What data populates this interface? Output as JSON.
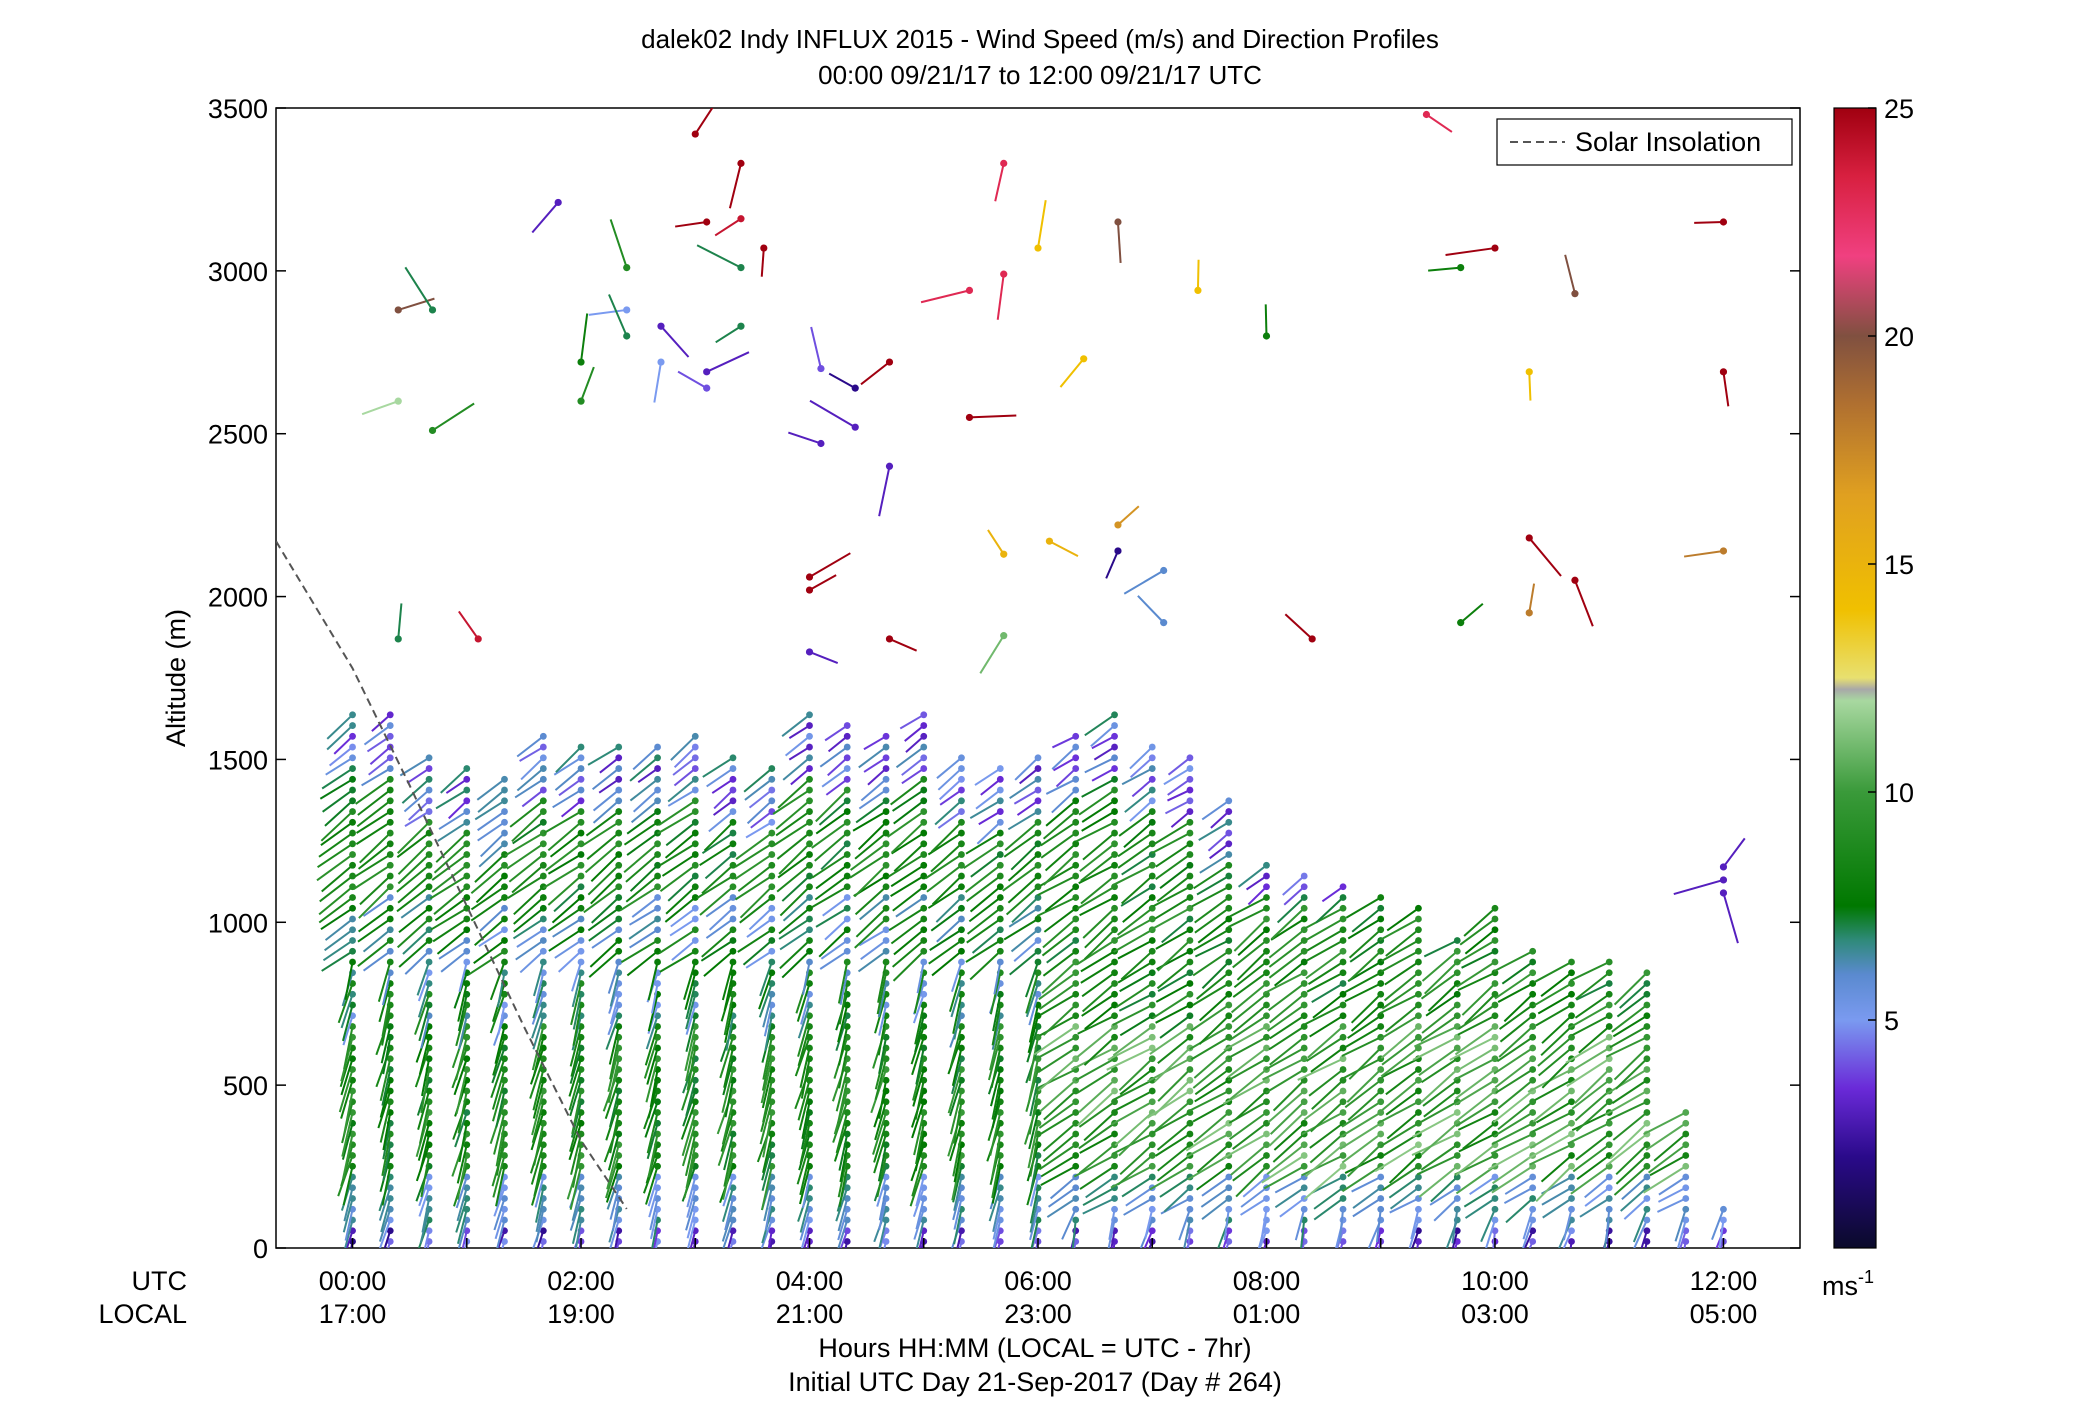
{
  "chart_data": {
    "type": "scatter",
    "title": "dalek02 Indy INFLUX 2015 - Wind Speed (m/s) and Direction Profiles",
    "subtitle": "00:00 09/21/17 to 12:00 09/21/17  UTC",
    "ylabel": "Altitude (m)",
    "ylim": [
      0,
      3500
    ],
    "yticks": [
      "0",
      "500",
      "1000",
      "1500",
      "2000",
      "2500",
      "3000",
      "3500"
    ],
    "x_row1_label": "UTC",
    "x_row2_label": "LOCAL",
    "xticks_utc": [
      "00:00",
      "02:00",
      "04:00",
      "06:00",
      "08:00",
      "10:00",
      "12:00"
    ],
    "xticks_local": [
      "17:00",
      "19:00",
      "21:00",
      "23:00",
      "01:00",
      "03:00",
      "05:00"
    ],
    "xlabel": "Hours HH:MM  (LOCAL = UTC - 7hr)",
    "xlabel2": "Initial UTC Day 21-Sep-2017 (Day # 264)",
    "xlim_hours": [
      -0.67,
      12.67
    ],
    "legend": {
      "entry": "Solar Insolation",
      "placement": "top-right",
      "style": "dashed gray line"
    },
    "colorbar": {
      "range": [
        0,
        25
      ],
      "ticks": [
        "5",
        "10",
        "15",
        "20",
        "25"
      ],
      "unit": "ms",
      "unit_exp": "-1",
      "colormap": "dark blue → purple → light blue (≈5) → teal/dark green (≈7) → light green (≈12) → gray band (≈12.5) → yellow (≈15) → orange (≈17) → brown (≈20) → pink (≈22) → dark red (25)"
    },
    "profile_times_hours": [
      0,
      0.33,
      0.67,
      1,
      1.33,
      1.67,
      2,
      2.33,
      2.67,
      3,
      3.33,
      3.67,
      4,
      4.33,
      4.67,
      5,
      5.33,
      5.67,
      6,
      6.33,
      6.67,
      7,
      7.33,
      7.67,
      8,
      8.33,
      8.67,
      9,
      9.33,
      9.67,
      10,
      10.33,
      10.67,
      11,
      11.33,
      11.67,
      12
    ],
    "profile_top_m": [
      1650,
      1650,
      1520,
      1480,
      1440,
      1600,
      1570,
      1550,
      1560,
      1600,
      1520,
      1480,
      1650,
      1620,
      1600,
      1650,
      1530,
      1500,
      1520,
      1580,
      1650,
      1560,
      1520,
      1400,
      1180,
      1150,
      1130,
      1090,
      1050,
      960,
      1050,
      940,
      900,
      880,
      860,
      440,
      150
    ],
    "solar_insolation_hours": [
      -0.67,
      0,
      0.5,
      1,
      1.5,
      2,
      2.4
    ],
    "solar_insolation_alt_m": [
      2170,
      1780,
      1420,
      1050,
      680,
      330,
      120
    ],
    "sparse_barbs": [
      {
        "t": 0.4,
        "alt": 2880,
        "speed": 20
      },
      {
        "t": 0.4,
        "alt": 2600,
        "speed": 12
      },
      {
        "t": 0.7,
        "alt": 2880,
        "speed": 7
      },
      {
        "t": 0.7,
        "alt": 2510,
        "speed": 9
      },
      {
        "t": 0.4,
        "alt": 1870,
        "speed": 7
      },
      {
        "t": 1.1,
        "alt": 1870,
        "speed": 24
      },
      {
        "t": 1.8,
        "alt": 3210,
        "speed": 3
      },
      {
        "t": 2.4,
        "alt": 3010,
        "speed": 9
      },
      {
        "t": 3.0,
        "alt": 3420,
        "speed": 25
      },
      {
        "t": 3.4,
        "alt": 3330,
        "speed": 25
      },
      {
        "t": 3.1,
        "alt": 3150,
        "speed": 25
      },
      {
        "t": 3.4,
        "alt": 3160,
        "speed": 24
      },
      {
        "t": 3.6,
        "alt": 3070,
        "speed": 25
      },
      {
        "t": 3.4,
        "alt": 3010,
        "speed": 7
      },
      {
        "t": 3.4,
        "alt": 2830,
        "speed": 7
      },
      {
        "t": 2.4,
        "alt": 2880,
        "speed": 5
      },
      {
        "t": 2.0,
        "alt": 2720,
        "speed": 8
      },
      {
        "t": 2.4,
        "alt": 2800,
        "speed": 7
      },
      {
        "t": 2.7,
        "alt": 2830,
        "speed": 3
      },
      {
        "t": 3.1,
        "alt": 2690,
        "speed": 3
      },
      {
        "t": 3.1,
        "alt": 2640,
        "speed": 4
      },
      {
        "t": 2.0,
        "alt": 2600,
        "speed": 9
      },
      {
        "t": 2.7,
        "alt": 2720,
        "speed": 5
      },
      {
        "t": 4.1,
        "alt": 2700,
        "speed": 4
      },
      {
        "t": 4.4,
        "alt": 2640,
        "speed": 2
      },
      {
        "t": 4.7,
        "alt": 2720,
        "speed": 25
      },
      {
        "t": 4.1,
        "alt": 2470,
        "speed": 3
      },
      {
        "t": 4.4,
        "alt": 2520,
        "speed": 3
      },
      {
        "t": 4.7,
        "alt": 2400,
        "speed": 3
      },
      {
        "t": 5.7,
        "alt": 3330,
        "speed": 23
      },
      {
        "t": 5.4,
        "alt": 2940,
        "speed": 23
      },
      {
        "t": 5.7,
        "alt": 2990,
        "speed": 23
      },
      {
        "t": 6.0,
        "alt": 3070,
        "speed": 14
      },
      {
        "t": 6.7,
        "alt": 3150,
        "speed": 20
      },
      {
        "t": 7.4,
        "alt": 2940,
        "speed": 14
      },
      {
        "t": 6.4,
        "alt": 2730,
        "speed": 14
      },
      {
        "t": 5.4,
        "alt": 2550,
        "speed": 25
      },
      {
        "t": 8.0,
        "alt": 2800,
        "speed": 8
      },
      {
        "t": 9.7,
        "alt": 3010,
        "speed": 8
      },
      {
        "t": 10.0,
        "alt": 3070,
        "speed": 25
      },
      {
        "t": 10.3,
        "alt": 2690,
        "speed": 14
      },
      {
        "t": 10.7,
        "alt": 2930,
        "speed": 20
      },
      {
        "t": 9.4,
        "alt": 3480,
        "speed": 23
      },
      {
        "t": 12.0,
        "alt": 3150,
        "speed": 25
      },
      {
        "t": 12.0,
        "alt": 2690,
        "speed": 25
      },
      {
        "t": 6.7,
        "alt": 2220,
        "speed": 17
      },
      {
        "t": 5.7,
        "alt": 2130,
        "speed": 15
      },
      {
        "t": 6.1,
        "alt": 2170,
        "speed": 15
      },
      {
        "t": 6.7,
        "alt": 2140,
        "speed": 2
      },
      {
        "t": 7.1,
        "alt": 2080,
        "speed": 6
      },
      {
        "t": 10.3,
        "alt": 2180,
        "speed": 25
      },
      {
        "t": 10.7,
        "alt": 2050,
        "speed": 25
      },
      {
        "t": 12.0,
        "alt": 2140,
        "speed": 18
      },
      {
        "t": 10.3,
        "alt": 1950,
        "speed": 18
      },
      {
        "t": 9.7,
        "alt": 1920,
        "speed": 8
      },
      {
        "t": 8.4,
        "alt": 1870,
        "speed": 25
      },
      {
        "t": 4.7,
        "alt": 1870,
        "speed": 25
      },
      {
        "t": 4.0,
        "alt": 2060,
        "speed": 25
      },
      {
        "t": 4.0,
        "alt": 2020,
        "speed": 25
      },
      {
        "t": 4.0,
        "alt": 1830,
        "speed": 3
      },
      {
        "t": 5.7,
        "alt": 1880,
        "speed": 11
      },
      {
        "t": 7.1,
        "alt": 1920,
        "speed": 6
      },
      {
        "t": 12.0,
        "alt": 1170,
        "speed": 3
      },
      {
        "t": 12.0,
        "alt": 1130,
        "speed": 3
      },
      {
        "t": 12.0,
        "alt": 1090,
        "speed": 3
      }
    ]
  }
}
